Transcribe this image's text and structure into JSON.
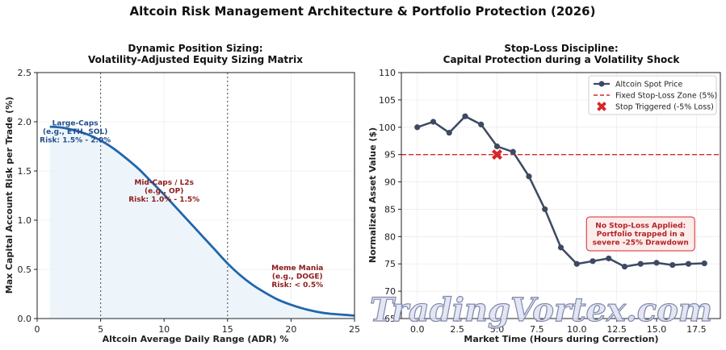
{
  "figure": {
    "title": "Altcoin Risk Management Architecture & Portfolio Protection (2026)",
    "watermark": "TradingVortex.com"
  },
  "chart_data": [
    {
      "type": "line",
      "title": "Dynamic Position Sizing:",
      "subtitle": "Volatility-Adjusted Equity Sizing Matrix",
      "xlabel": "Altcoin Average Daily Range (ADR) %",
      "ylabel": "Max Capital Account Risk per Trade (%)",
      "xlim": [
        0,
        25
      ],
      "ylim": [
        0,
        2.5
      ],
      "xticks": [
        0,
        5,
        10,
        15,
        20,
        25
      ],
      "yticks": [
        0.0,
        0.5,
        1.0,
        1.5,
        2.0,
        2.5
      ],
      "grid": true,
      "line_color": "#2166ac",
      "fill_color": "#ebf4fb",
      "vlines": [
        5,
        15
      ],
      "series": [
        {
          "x": [
            1,
            2,
            3,
            4,
            5,
            6,
            7,
            8,
            9,
            10,
            11,
            12,
            13,
            14,
            15,
            16,
            17,
            18,
            19,
            20,
            21,
            22,
            23,
            24,
            25
          ],
          "values": [
            1.95,
            1.94,
            1.91,
            1.87,
            1.81,
            1.73,
            1.63,
            1.52,
            1.39,
            1.26,
            1.12,
            0.98,
            0.84,
            0.7,
            0.56,
            0.44,
            0.34,
            0.26,
            0.19,
            0.14,
            0.1,
            0.07,
            0.05,
            0.04,
            0.03
          ]
        }
      ],
      "annotations": [
        {
          "lines": [
            "Large-Caps",
            "(e.g., ETH, SOL)",
            "Risk: 1.5% - 2.0%"
          ],
          "x": 3,
          "y": 1.9,
          "color": "#1f4e8c"
        },
        {
          "lines": [
            "Mid-Caps / L2s",
            "(e.g., OP)",
            "Risk: 1.0% - 1.5%"
          ],
          "x": 10,
          "y": 1.3,
          "color": "#8b1a1a"
        },
        {
          "lines": [
            "Meme Mania",
            "(e.g., DOGE)",
            "Risk: < 0.5%"
          ],
          "x": 20.5,
          "y": 0.43,
          "color": "#8b1a1a"
        }
      ]
    },
    {
      "type": "line",
      "title": "Stop-Loss Discipline:",
      "subtitle": "Capital Protection during a Volatility Shock",
      "xlabel": "Market Time (Hours during Correction)",
      "ylabel": "Normalized Asset Value ($)",
      "xlim": [
        -1,
        19
      ],
      "ylim": [
        65,
        110
      ],
      "xticks": [
        0.0,
        2.5,
        5.0,
        7.5,
        10.0,
        12.5,
        15.0,
        17.5
      ],
      "yticks": [
        65,
        70,
        75,
        80,
        85,
        90,
        95,
        100,
        105,
        110
      ],
      "grid": true,
      "series": [
        {
          "name": "Altcoin Spot Price",
          "color": "#3d4a63",
          "x": [
            0,
            1,
            2,
            3,
            4,
            5,
            6,
            7,
            8,
            9,
            10,
            11,
            12,
            13,
            14,
            15,
            16,
            17,
            18
          ],
          "values": [
            100,
            101,
            99,
            102,
            100.5,
            96.5,
            95.5,
            91,
            85,
            78,
            75,
            75.5,
            76,
            74.5,
            75,
            75.2,
            74.8,
            75,
            75.1
          ]
        },
        {
          "name": "Fixed Stop-Loss Zone (5%)",
          "color": "#d62728",
          "y": 95
        },
        {
          "name": "Stop Triggered (-5% Loss)",
          "color": "#d62728",
          "x": [
            5
          ],
          "values": [
            95
          ]
        }
      ],
      "legend_position": "top-right",
      "annotations": [
        {
          "lines": [
            "No Stop-Loss Applied:",
            "Portfolio trapped in a",
            "severe -25% Drawdown"
          ],
          "x": 14,
          "y": 80.5,
          "color": "#b22222"
        }
      ]
    }
  ]
}
